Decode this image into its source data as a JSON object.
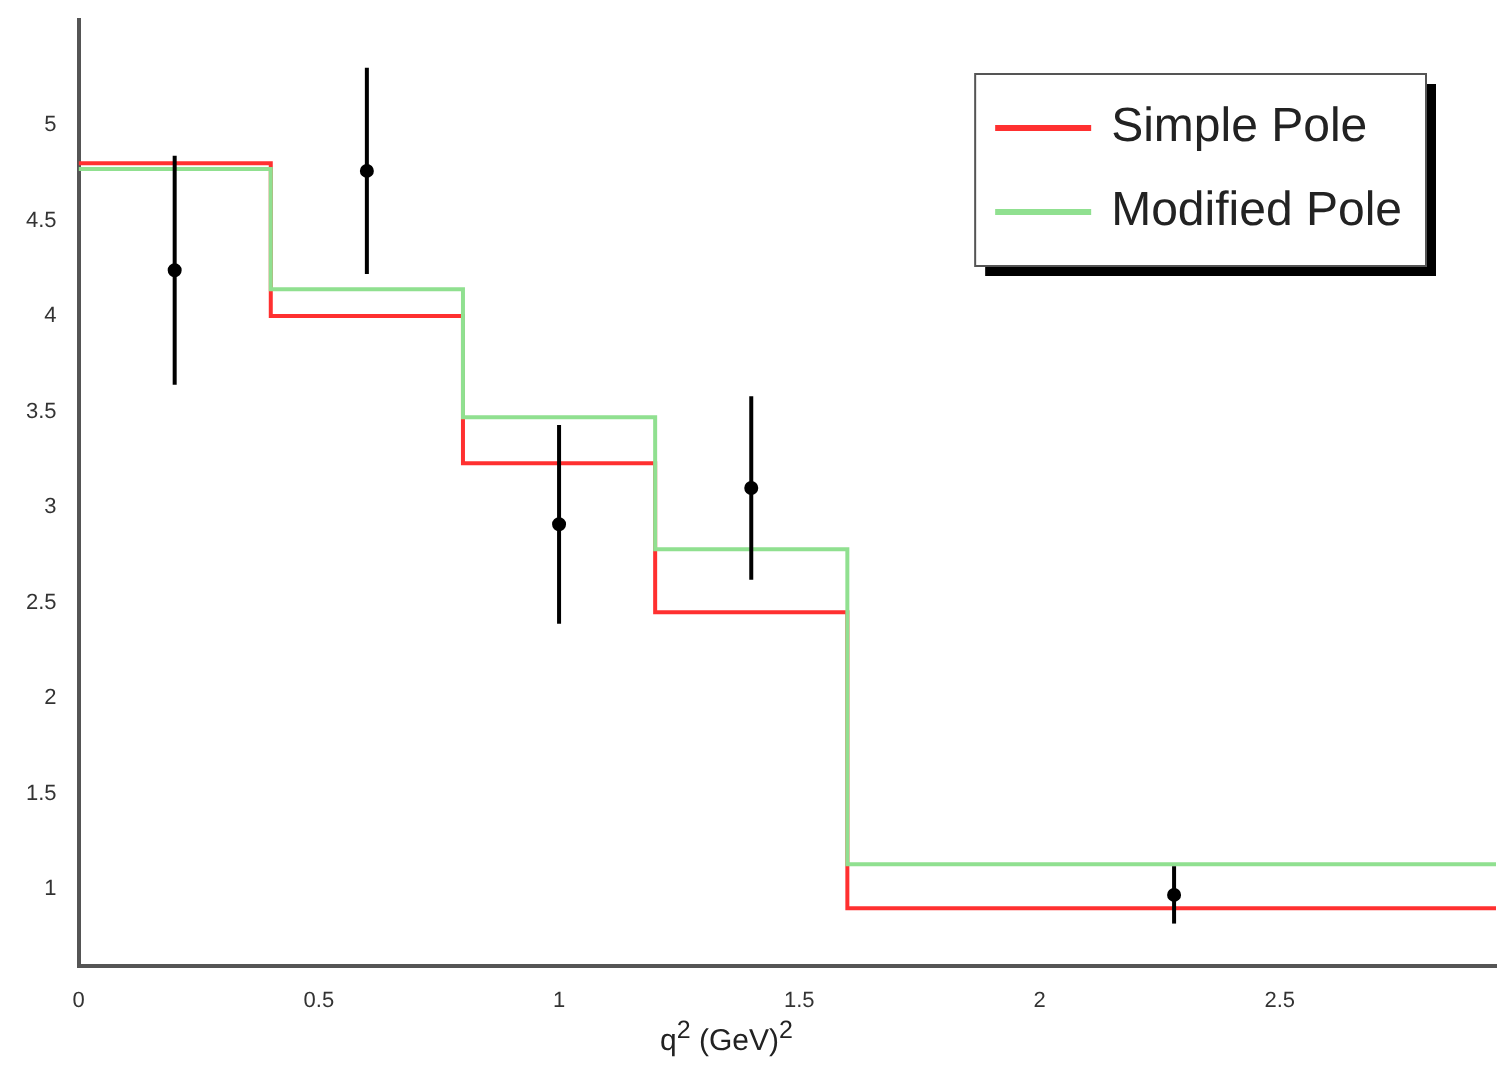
{
  "chart_data": {
    "type": "step",
    "xlabel": "q$^{2}$ (GeV)$^{2}$",
    "xlim": [
      0,
      2.95
    ],
    "ylim": [
      0.6,
      5.55
    ],
    "xticks": [
      0,
      0.5,
      1,
      1.5,
      2,
      2.5
    ],
    "yticks": [
      1,
      1.5,
      2,
      2.5,
      3,
      3.5,
      4,
      4.5,
      5
    ],
    "grid": false,
    "legend": "top right",
    "series": [
      {
        "name": "Modified Pole",
        "color": "#90e090",
        "x": [
          0,
          0.4,
          0.8,
          1.2,
          1.6,
          2.95
        ],
        "values": [
          4.77,
          4.14,
          3.47,
          2.78,
          1.13,
          1.13
        ]
      },
      {
        "name": "Simple Pole",
        "color": "#ff3030",
        "x": [
          0,
          0.4,
          0.8,
          1.2,
          1.6,
          2.95
        ],
        "values": [
          4.8,
          4.0,
          3.23,
          2.45,
          0.9,
          0.9
        ]
      },
      {
        "type": "scatter",
        "color": "#000000",
        "marker": "circle",
        "x": [
          0.2,
          0.6,
          1.0,
          1.4,
          2.28
        ],
        "values": [
          4.24,
          4.76,
          2.91,
          3.1,
          0.97
        ],
        "errors": [
          0.6,
          0.54,
          0.52,
          0.48,
          0.15
        ]
      }
    ]
  }
}
